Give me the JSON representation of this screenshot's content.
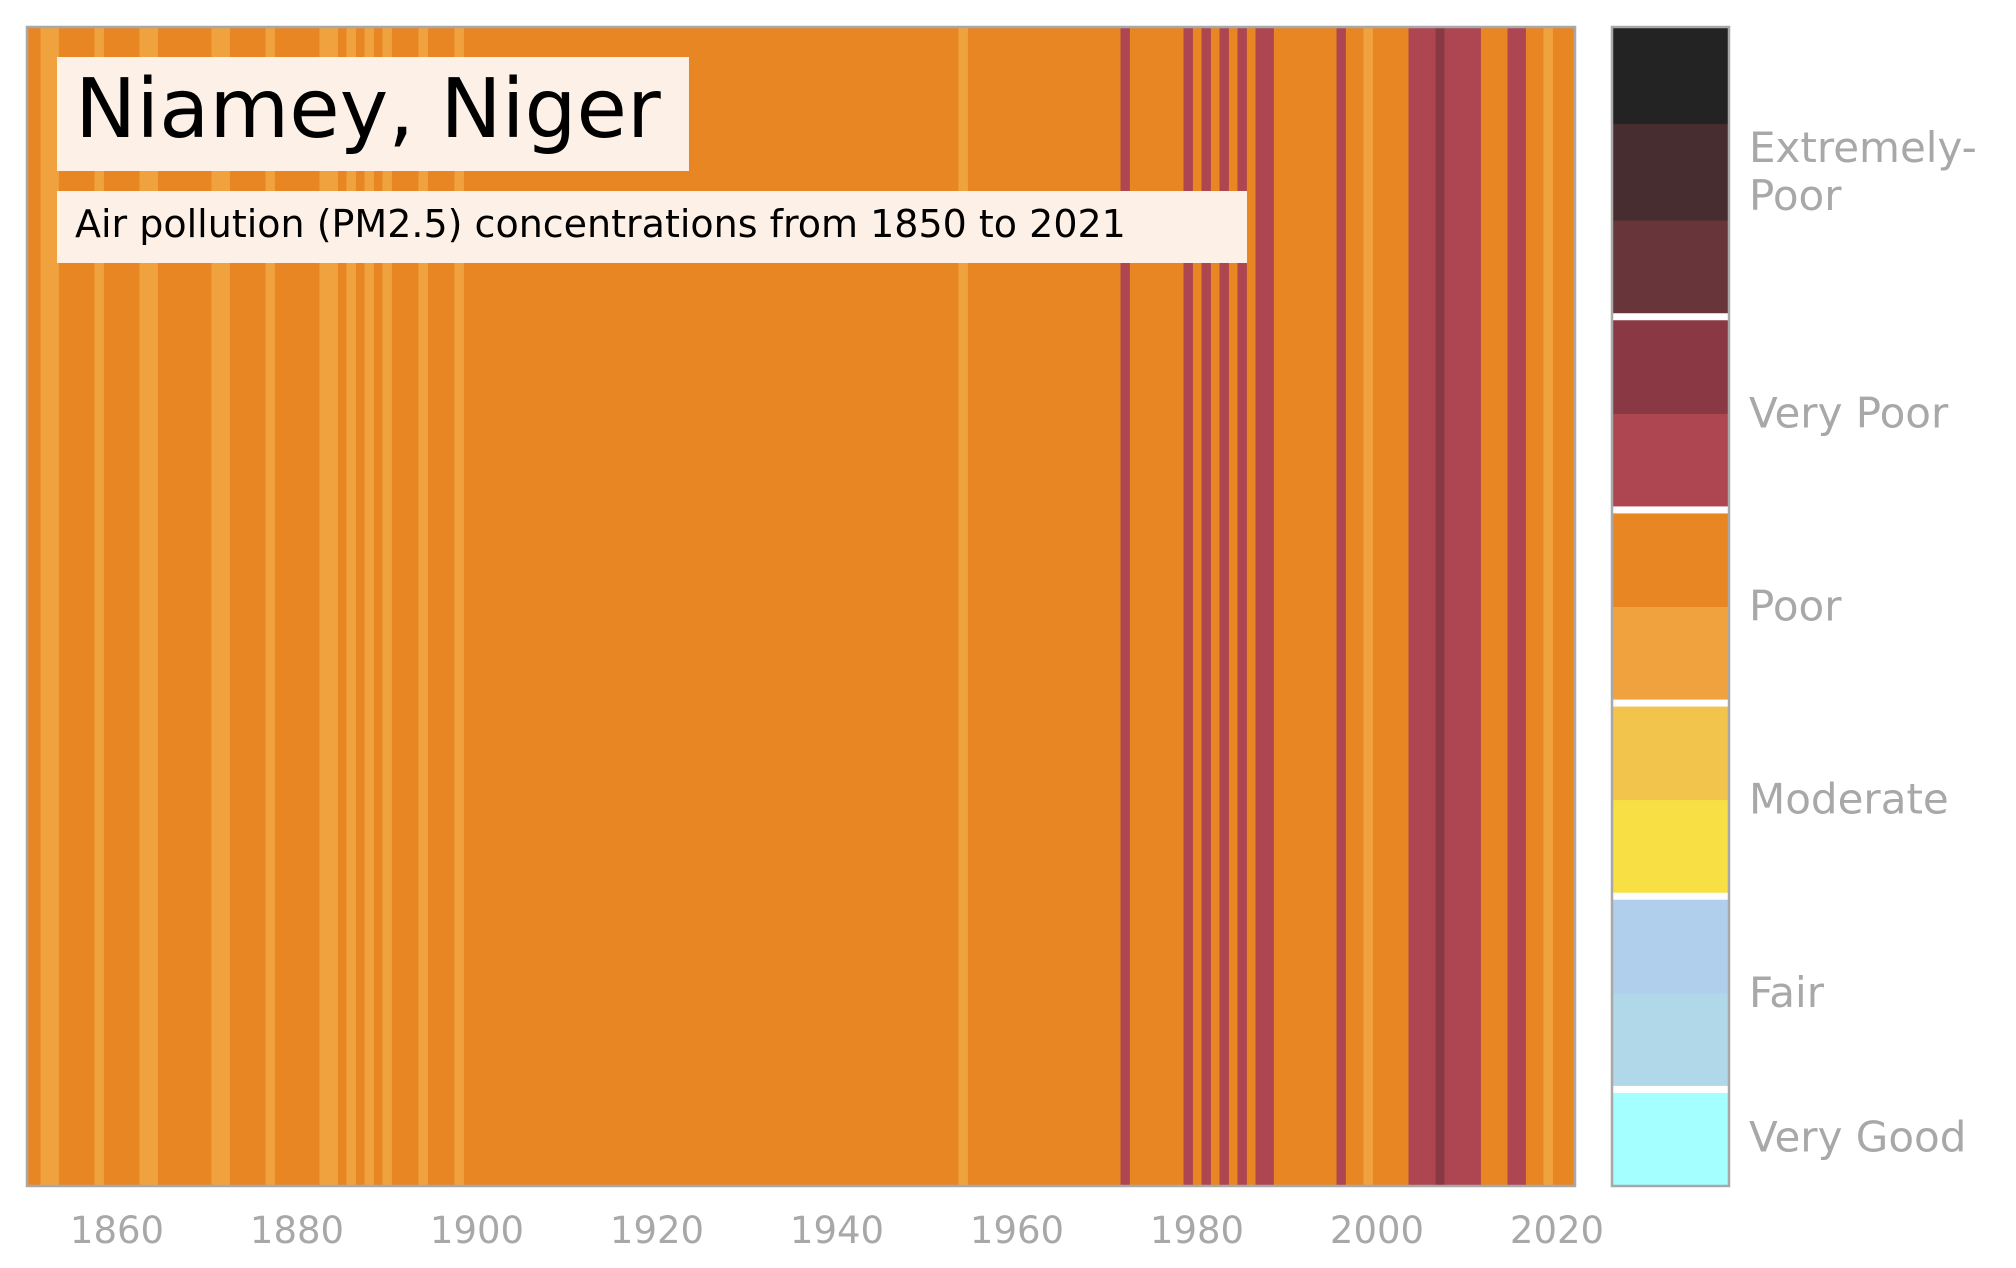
{
  "chart_data": {
    "type": "heatmap",
    "title": "Niamey, Niger",
    "subtitle": "Air pollution (PM2.5) concentrations from 1850 to 2021",
    "x_ticks": [
      "1860",
      "1880",
      "1900",
      "1920",
      "1940",
      "1960",
      "1980",
      "2000",
      "2020"
    ],
    "x_tick_values": [
      1860,
      1880,
      1900,
      1920,
      1940,
      1960,
      1980,
      2000,
      2020
    ],
    "xlim": [
      1850,
      2022
    ],
    "level_colors": [
      "#a4ffff",
      "#b0d8e8",
      "#b0cfec",
      "#f8e044",
      "#f2c44c",
      "#f0a23e",
      "#e88624",
      "#ad4650",
      "#893844",
      "#68363a",
      "#472d2f",
      "#232323"
    ],
    "background_level": 6,
    "stripes": [
      {
        "year": 1852,
        "level": 5
      },
      {
        "year": 1853,
        "level": 5
      },
      {
        "year": 1858,
        "level": 5
      },
      {
        "year": 1863,
        "level": 5
      },
      {
        "year": 1864,
        "level": 5
      },
      {
        "year": 1871,
        "level": 5
      },
      {
        "year": 1872,
        "level": 5
      },
      {
        "year": 1877,
        "level": 5
      },
      {
        "year": 1883,
        "level": 5
      },
      {
        "year": 1884,
        "level": 5
      },
      {
        "year": 1886,
        "level": 5
      },
      {
        "year": 1888,
        "level": 5
      },
      {
        "year": 1890,
        "level": 5
      },
      {
        "year": 1894,
        "level": 5
      },
      {
        "year": 1898,
        "level": 5
      },
      {
        "year": 1954,
        "level": 5
      },
      {
        "year": 1972,
        "level": 7
      },
      {
        "year": 1979,
        "level": 7
      },
      {
        "year": 1981,
        "level": 7
      },
      {
        "year": 1983,
        "level": 7
      },
      {
        "year": 1985,
        "level": 7
      },
      {
        "year": 1987,
        "level": 7
      },
      {
        "year": 1988,
        "level": 7
      },
      {
        "year": 1996,
        "level": 7
      },
      {
        "year": 1999,
        "level": 5
      },
      {
        "year": 2004,
        "level": 7
      },
      {
        "year": 2005,
        "level": 7
      },
      {
        "year": 2006,
        "level": 7
      },
      {
        "year": 2007,
        "level": 8
      },
      {
        "year": 2008,
        "level": 7
      },
      {
        "year": 2009,
        "level": 7
      },
      {
        "year": 2010,
        "level": 7
      },
      {
        "year": 2011,
        "level": 7
      },
      {
        "year": 2015,
        "level": 7
      },
      {
        "year": 2016,
        "level": 7
      },
      {
        "year": 2019,
        "level": 5
      }
    ],
    "legend": [
      {
        "label": "Very Good",
        "levels": [
          0
        ]
      },
      {
        "label": "Fair",
        "levels": [
          1,
          2
        ]
      },
      {
        "label": "Moderate",
        "levels": [
          3,
          4
        ]
      },
      {
        "label": "Poor",
        "levels": [
          5,
          6
        ]
      },
      {
        "label": "Very Poor",
        "levels": [
          7,
          8
        ]
      },
      {
        "label": "Extremely-\nPoor",
        "levels": [
          9,
          10,
          11
        ]
      }
    ],
    "axis_color": "#a8a8a8"
  }
}
